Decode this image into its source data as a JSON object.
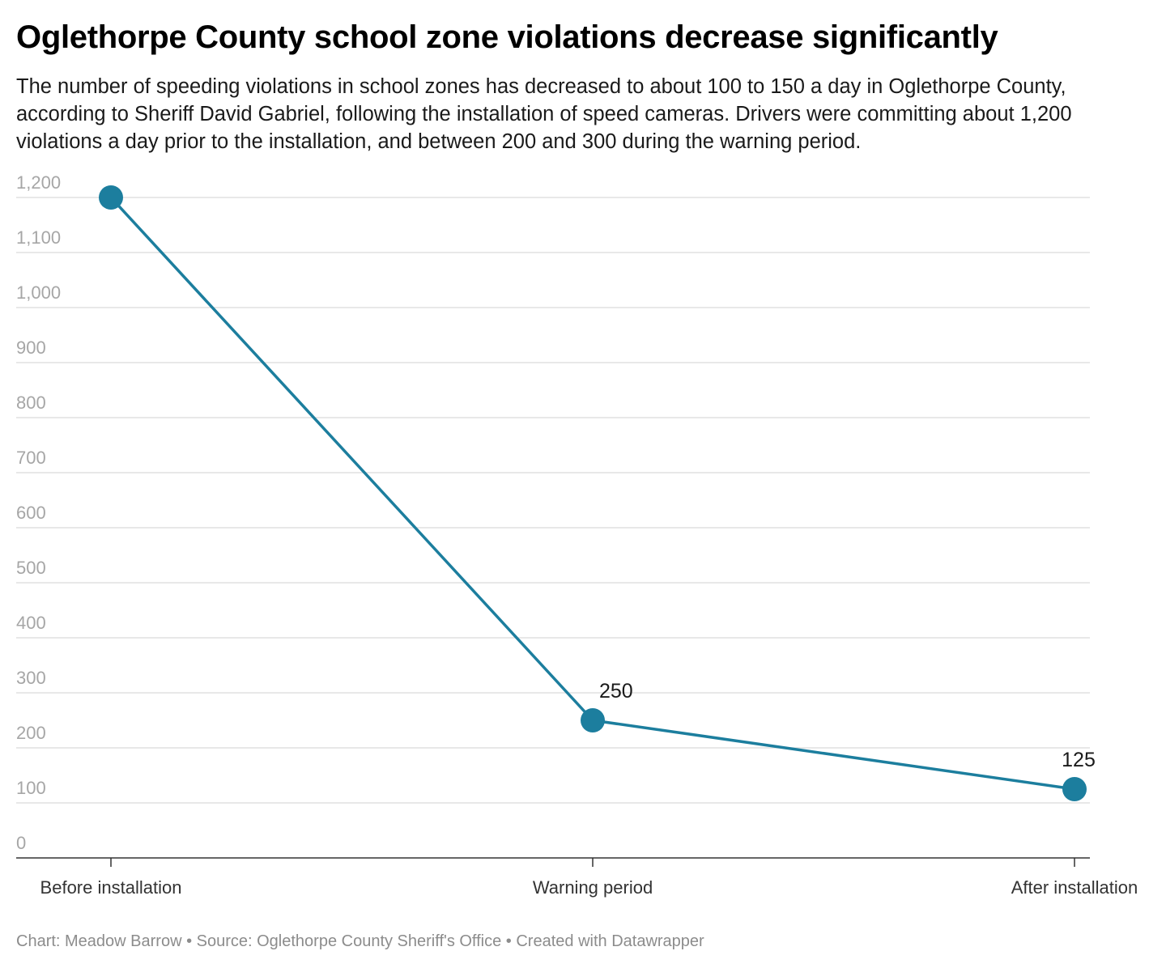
{
  "header": {
    "title": "Oglethorpe County school zone violations decrease significantly",
    "subtitle": "The number of speeding violations in school zones has decreased to about 100 to 150 a day in Oglethorpe County, according to Sheriff David Gabriel, following the installation of speed cameras. Drivers were committing about 1,200 violations a day prior to the installation, and between 200 and 300 during the warning period."
  },
  "footer": {
    "text": "Chart: Meadow Barrow • Source: Oglethorpe County Sheriff's Office • Created with Datawrapper"
  },
  "colors": {
    "series": "#1c7e9e",
    "grid": "#e1e1e1",
    "axis": "#333333",
    "tick_text": "#a6a6a6"
  },
  "chart_data": {
    "type": "line",
    "categories": [
      "Before installation",
      "Warning period",
      "After installation"
    ],
    "series": [
      {
        "values": [
          1200,
          250,
          125
        ],
        "data_labels": [
          "",
          "250",
          "125"
        ]
      }
    ],
    "yticks": [
      0,
      100,
      200,
      300,
      400,
      500,
      600,
      700,
      800,
      900,
      1000,
      1100,
      1200
    ],
    "ytick_labels": [
      "0",
      "100",
      "200",
      "300",
      "400",
      "500",
      "600",
      "700",
      "800",
      "900",
      "1,000",
      "1,100",
      "1,200"
    ],
    "ylim": [
      0,
      1200
    ],
    "grid": true,
    "markers": true,
    "legend": "none"
  }
}
